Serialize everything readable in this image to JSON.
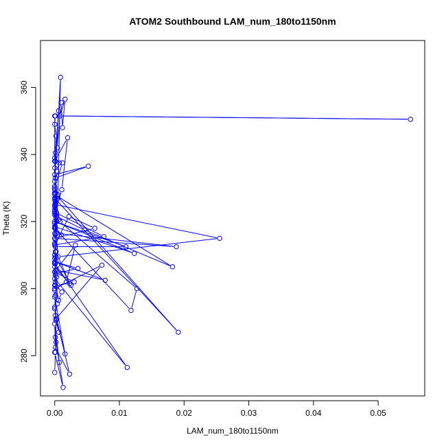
{
  "chart_data": {
    "type": "line",
    "title": "ATOM2 Southbound LAM_num_180to1150nm",
    "xlabel": "LAM_num_180to1150nm",
    "ylabel": "Theta (K)",
    "xlim": [
      -0.0022,
      0.0572
    ],
    "ylim": [
      268,
      374
    ],
    "xticks": [
      0.0,
      0.01,
      0.02,
      0.03,
      0.04,
      0.05
    ],
    "xtick_labels": [
      "0.00",
      "0.01",
      "0.02",
      "0.03",
      "0.04",
      "0.05"
    ],
    "yticks": [
      280,
      300,
      320,
      340,
      360
    ],
    "ytick_labels": [
      "280",
      "300",
      "320",
      "340",
      "360"
    ],
    "grid": false,
    "marker": "open-circle",
    "color": "#0000ff",
    "series": [
      {
        "x": [
          0.0,
          0.0001,
          0.0002,
          0.0,
          0.0001,
          0.0003,
          0.0,
          0.0001,
          0.0,
          0.0002,
          0.0,
          0.0001,
          0.0,
          0.0,
          0.055,
          0.0001,
          0.0,
          0.0002,
          0.0001,
          0.0,
          0.0052,
          0.0001,
          0.0,
          0.0001,
          0.0,
          0.0,
          0.0002,
          0.0,
          0.0001,
          0.0003,
          0.0001,
          0.0005,
          0.0009,
          0.0,
          0.0001,
          0.0006,
          0.001,
          0.0012,
          0.0016,
          0.0008,
          0.0004,
          0.0,
          0.0007,
          0.0003,
          0.0,
          0.0005,
          0.0001,
          0.0,
          0.0,
          0.0011,
          0.002,
          0.0,
          0.0012,
          0.0,
          0.0005,
          0.0001,
          0.0,
          0.0006,
          0.0001,
          0.001,
          0.0,
          0.0001,
          0.0,
          0.0191,
          0.0,
          0.0002,
          0.0255,
          0.0005,
          0.0,
          0.0003,
          0.0046,
          0.0182,
          0.0,
          0.0008,
          0.0127,
          0.0118,
          0.0,
          0.0001,
          0.0003,
          0.0076,
          0.0,
          0.0022,
          0.0062,
          0.0,
          0.0001,
          0.011,
          0.0,
          0.0123,
          0.0,
          0.0002,
          0.0188,
          0.0,
          0.0001,
          0.0002,
          0.0,
          0.0001,
          0.0,
          0.003,
          0.0023,
          0.0002,
          0.0,
          0.0112,
          0.0,
          0.0001,
          0.0002,
          0.0078,
          0.0,
          0.0036,
          0.0001,
          0.0,
          0.0025,
          0.0,
          0.0001,
          0.0003,
          0.0018,
          0.0032,
          0.0,
          0.0001,
          0.0006,
          0.0,
          0.0073,
          0.0002,
          0.0,
          0.0001,
          0.0011,
          0.0004,
          0.0,
          0.0016,
          0.0001,
          0.0006,
          0.0,
          0.0003,
          0.0023,
          0.0001,
          0.0,
          0.0007,
          0.0002,
          0.0,
          0.0013,
          0.0001
        ],
        "y": [
          275.0,
          281.0,
          290.5,
          294.5,
          298.0,
          303.5,
          301.0,
          314.5,
          316.5,
          322.0,
          326.5,
          328.5,
          336.0,
          351.5,
          350.5,
          351.5,
          349.0,
          345.5,
          338.0,
          334.0,
          336.5,
          333.0,
          329.5,
          327.0,
          325.0,
          323.0,
          321.0,
          319.5,
          318.0,
          320.0,
          324.0,
          327.5,
          363.0,
          332.0,
          340.5,
          353.0,
          355.5,
          348.0,
          356.5,
          351.5,
          342.0,
          339.0,
          337.5,
          335.0,
          330.5,
          328.0,
          326.0,
          324.5,
          322.5,
          329.5,
          345.0,
          338.0,
          337.5,
          330.0,
          327.0,
          325.5,
          322.0,
          320.5,
          318.5,
          316.0,
          313.5,
          311.0,
          328.5,
          287.0,
          327.0,
          325.0,
          315.0,
          309.5,
          323.5,
          321.5,
          317.5,
          306.5,
          328.0,
          320.0,
          300.0,
          293.5,
          318.0,
          316.0,
          322.5,
          315.5,
          313.0,
          321.5,
          318.0,
          315.0,
          312.5,
          312.5,
          320.0,
          310.5,
          318.5,
          316.5,
          312.5,
          315.0,
          313.0,
          311.0,
          309.0,
          307.5,
          305.0,
          302.0,
          301.5,
          311.0,
          303.0,
          276.5,
          307.5,
          309.5,
          305.5,
          302.5,
          308.0,
          306.0,
          304.5,
          310.0,
          301.0,
          306.5,
          304.0,
          300.5,
          302.0,
          313.0,
          305.0,
          302.0,
          296.5,
          300.0,
          307.0,
          291.0,
          299.5,
          301.0,
          299.0,
          295.5,
          297.5,
          280.5,
          292.0,
          287.0,
          294.0,
          291.0,
          274.5,
          282.5,
          289.5,
          278.0,
          284.0,
          281.0,
          270.5,
          285.5
        ]
      }
    ]
  }
}
